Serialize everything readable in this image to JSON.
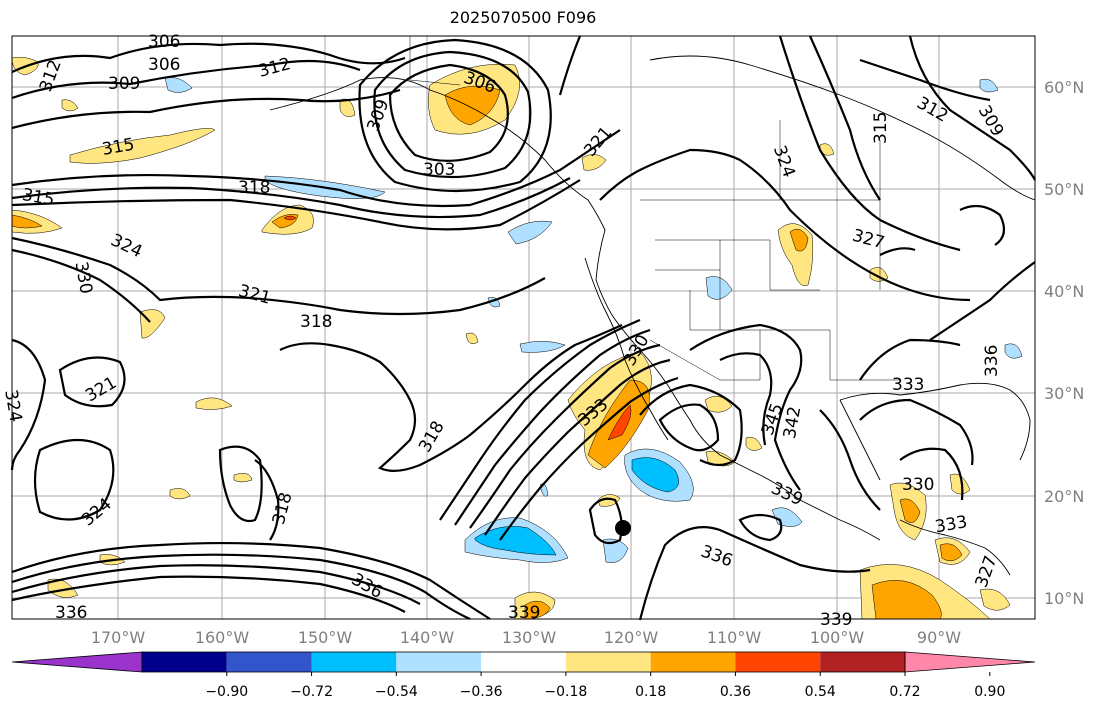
{
  "title": "2025070500 F096",
  "map": {
    "lon_labels": [
      "170°W",
      "160°W",
      "150°W",
      "140°W",
      "130°W",
      "120°W",
      "110°W",
      "100°W",
      "90°W"
    ],
    "lat_labels": [
      "60°N",
      "50°N",
      "40°N",
      "30°N",
      "20°N",
      "10°N"
    ],
    "contour_labels": [
      "303",
      "306",
      "309",
      "312",
      "315",
      "318",
      "321",
      "324",
      "327",
      "330",
      "333",
      "336",
      "339",
      "342",
      "345"
    ],
    "grid": true,
    "marker": "filled black circle"
  },
  "colorbar": {
    "ticks": [
      "−0.90",
      "−0.72",
      "−0.54",
      "−0.36",
      "−0.18",
      "0.18",
      "0.36",
      "0.54",
      "0.72",
      "0.90"
    ],
    "colors": [
      "#9933cc",
      "#00008b",
      "#3355cc",
      "#00bfff",
      "#b0e0ff",
      "#ffffff",
      "#ffe680",
      "#ffa500",
      "#ff4500",
      "#b22222",
      "#ff88aa"
    ],
    "extend": "both"
  }
}
